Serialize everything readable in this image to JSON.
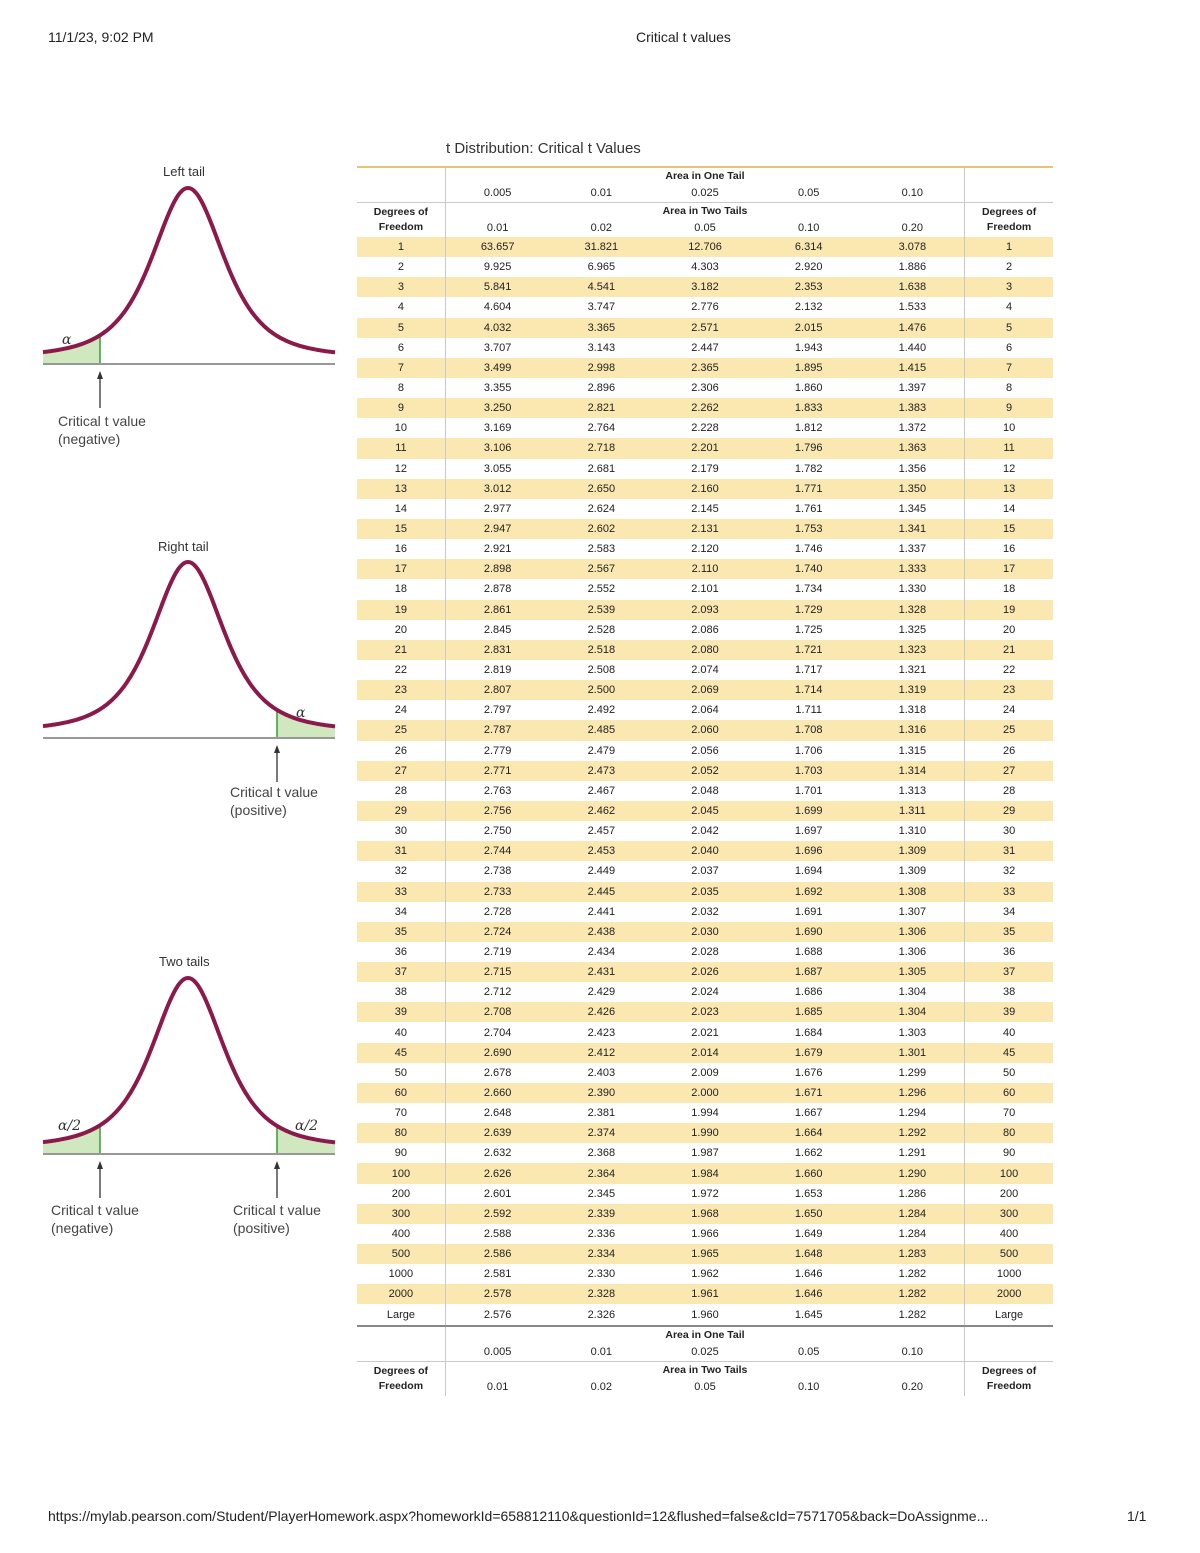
{
  "browser_header": {
    "datetime": "11/1/23, 9:02 PM",
    "page_title": "Critical t values"
  },
  "browser_footer": {
    "url": "https://mylab.pearson.com/Student/PlayerHomework.aspx?homeworkId=658812110&questionId=12&flushed=false&cId=7571705&back=DoAssignme...",
    "page_count": "1/1"
  },
  "diagrams": {
    "left": {
      "title": "Left tail",
      "alpha": "α",
      "caption_line1": "Critical t value",
      "caption_line2": "(negative)"
    },
    "right": {
      "title": "Right tail",
      "alpha": "α",
      "caption_line1": "Critical t value",
      "caption_line2": "(positive)"
    },
    "two": {
      "title": "Two tails",
      "alpha_left": "α/2",
      "alpha_right": "α/2",
      "caption_left_line1": "Critical t value",
      "caption_left_line2": "(negative)",
      "caption_right_line1": "Critical t value",
      "caption_right_line2": "(positive)"
    },
    "colors": {
      "curve": "#8b1a4a",
      "shade": "#cfe8c0"
    }
  },
  "table": {
    "title": "t Distribution: Critical t Values",
    "one_tail_label": "Area in One Tail",
    "two_tail_label": "Area in Two Tails",
    "df_label_line1": "Degrees of",
    "df_label_line2": "Freedom",
    "one_tail": [
      "0.005",
      "0.01",
      "0.025",
      "0.05",
      "0.10"
    ],
    "two_tail": [
      "0.01",
      "0.02",
      "0.05",
      "0.10",
      "0.20"
    ],
    "highlight_color": "#fbe8b0",
    "rows": [
      [
        "1",
        "63.657",
        "31.821",
        "12.706",
        "6.314",
        "3.078"
      ],
      [
        "2",
        "9.925",
        "6.965",
        "4.303",
        "2.920",
        "1.886"
      ],
      [
        "3",
        "5.841",
        "4.541",
        "3.182",
        "2.353",
        "1.638"
      ],
      [
        "4",
        "4.604",
        "3.747",
        "2.776",
        "2.132",
        "1.533"
      ],
      [
        "5",
        "4.032",
        "3.365",
        "2.571",
        "2.015",
        "1.476"
      ],
      [
        "6",
        "3.707",
        "3.143",
        "2.447",
        "1.943",
        "1.440"
      ],
      [
        "7",
        "3.499",
        "2.998",
        "2.365",
        "1.895",
        "1.415"
      ],
      [
        "8",
        "3.355",
        "2.896",
        "2.306",
        "1.860",
        "1.397"
      ],
      [
        "9",
        "3.250",
        "2.821",
        "2.262",
        "1.833",
        "1.383"
      ],
      [
        "10",
        "3.169",
        "2.764",
        "2.228",
        "1.812",
        "1.372"
      ],
      [
        "11",
        "3.106",
        "2.718",
        "2.201",
        "1.796",
        "1.363"
      ],
      [
        "12",
        "3.055",
        "2.681",
        "2.179",
        "1.782",
        "1.356"
      ],
      [
        "13",
        "3.012",
        "2.650",
        "2.160",
        "1.771",
        "1.350"
      ],
      [
        "14",
        "2.977",
        "2.624",
        "2.145",
        "1.761",
        "1.345"
      ],
      [
        "15",
        "2.947",
        "2.602",
        "2.131",
        "1.753",
        "1.341"
      ],
      [
        "16",
        "2.921",
        "2.583",
        "2.120",
        "1.746",
        "1.337"
      ],
      [
        "17",
        "2.898",
        "2.567",
        "2.110",
        "1.740",
        "1.333"
      ],
      [
        "18",
        "2.878",
        "2.552",
        "2.101",
        "1.734",
        "1.330"
      ],
      [
        "19",
        "2.861",
        "2.539",
        "2.093",
        "1.729",
        "1.328"
      ],
      [
        "20",
        "2.845",
        "2.528",
        "2.086",
        "1.725",
        "1.325"
      ],
      [
        "21",
        "2.831",
        "2.518",
        "2.080",
        "1.721",
        "1.323"
      ],
      [
        "22",
        "2.819",
        "2.508",
        "2.074",
        "1.717",
        "1.321"
      ],
      [
        "23",
        "2.807",
        "2.500",
        "2.069",
        "1.714",
        "1.319"
      ],
      [
        "24",
        "2.797",
        "2.492",
        "2.064",
        "1.711",
        "1.318"
      ],
      [
        "25",
        "2.787",
        "2.485",
        "2.060",
        "1.708",
        "1.316"
      ],
      [
        "26",
        "2.779",
        "2.479",
        "2.056",
        "1.706",
        "1.315"
      ],
      [
        "27",
        "2.771",
        "2.473",
        "2.052",
        "1.703",
        "1.314"
      ],
      [
        "28",
        "2.763",
        "2.467",
        "2.048",
        "1.701",
        "1.313"
      ],
      [
        "29",
        "2.756",
        "2.462",
        "2.045",
        "1.699",
        "1.311"
      ],
      [
        "30",
        "2.750",
        "2.457",
        "2.042",
        "1.697",
        "1.310"
      ],
      [
        "31",
        "2.744",
        "2.453",
        "2.040",
        "1.696",
        "1.309"
      ],
      [
        "32",
        "2.738",
        "2.449",
        "2.037",
        "1.694",
        "1.309"
      ],
      [
        "33",
        "2.733",
        "2.445",
        "2.035",
        "1.692",
        "1.308"
      ],
      [
        "34",
        "2.728",
        "2.441",
        "2.032",
        "1.691",
        "1.307"
      ],
      [
        "35",
        "2.724",
        "2.438",
        "2.030",
        "1.690",
        "1.306"
      ],
      [
        "36",
        "2.719",
        "2.434",
        "2.028",
        "1.688",
        "1.306"
      ],
      [
        "37",
        "2.715",
        "2.431",
        "2.026",
        "1.687",
        "1.305"
      ],
      [
        "38",
        "2.712",
        "2.429",
        "2.024",
        "1.686",
        "1.304"
      ],
      [
        "39",
        "2.708",
        "2.426",
        "2.023",
        "1.685",
        "1.304"
      ],
      [
        "40",
        "2.704",
        "2.423",
        "2.021",
        "1.684",
        "1.303"
      ],
      [
        "45",
        "2.690",
        "2.412",
        "2.014",
        "1.679",
        "1.301"
      ],
      [
        "50",
        "2.678",
        "2.403",
        "2.009",
        "1.676",
        "1.299"
      ],
      [
        "60",
        "2.660",
        "2.390",
        "2.000",
        "1.671",
        "1.296"
      ],
      [
        "70",
        "2.648",
        "2.381",
        "1.994",
        "1.667",
        "1.294"
      ],
      [
        "80",
        "2.639",
        "2.374",
        "1.990",
        "1.664",
        "1.292"
      ],
      [
        "90",
        "2.632",
        "2.368",
        "1.987",
        "1.662",
        "1.291"
      ],
      [
        "100",
        "2.626",
        "2.364",
        "1.984",
        "1.660",
        "1.290"
      ],
      [
        "200",
        "2.601",
        "2.345",
        "1.972",
        "1.653",
        "1.286"
      ],
      [
        "300",
        "2.592",
        "2.339",
        "1.968",
        "1.650",
        "1.284"
      ],
      [
        "400",
        "2.588",
        "2.336",
        "1.966",
        "1.649",
        "1.284"
      ],
      [
        "500",
        "2.586",
        "2.334",
        "1.965",
        "1.648",
        "1.283"
      ],
      [
        "1000",
        "2.581",
        "2.330",
        "1.962",
        "1.646",
        "1.282"
      ],
      [
        "2000",
        "2.578",
        "2.328",
        "1.961",
        "1.646",
        "1.282"
      ],
      [
        "Large",
        "2.576",
        "2.326",
        "1.960",
        "1.645",
        "1.282"
      ]
    ]
  }
}
